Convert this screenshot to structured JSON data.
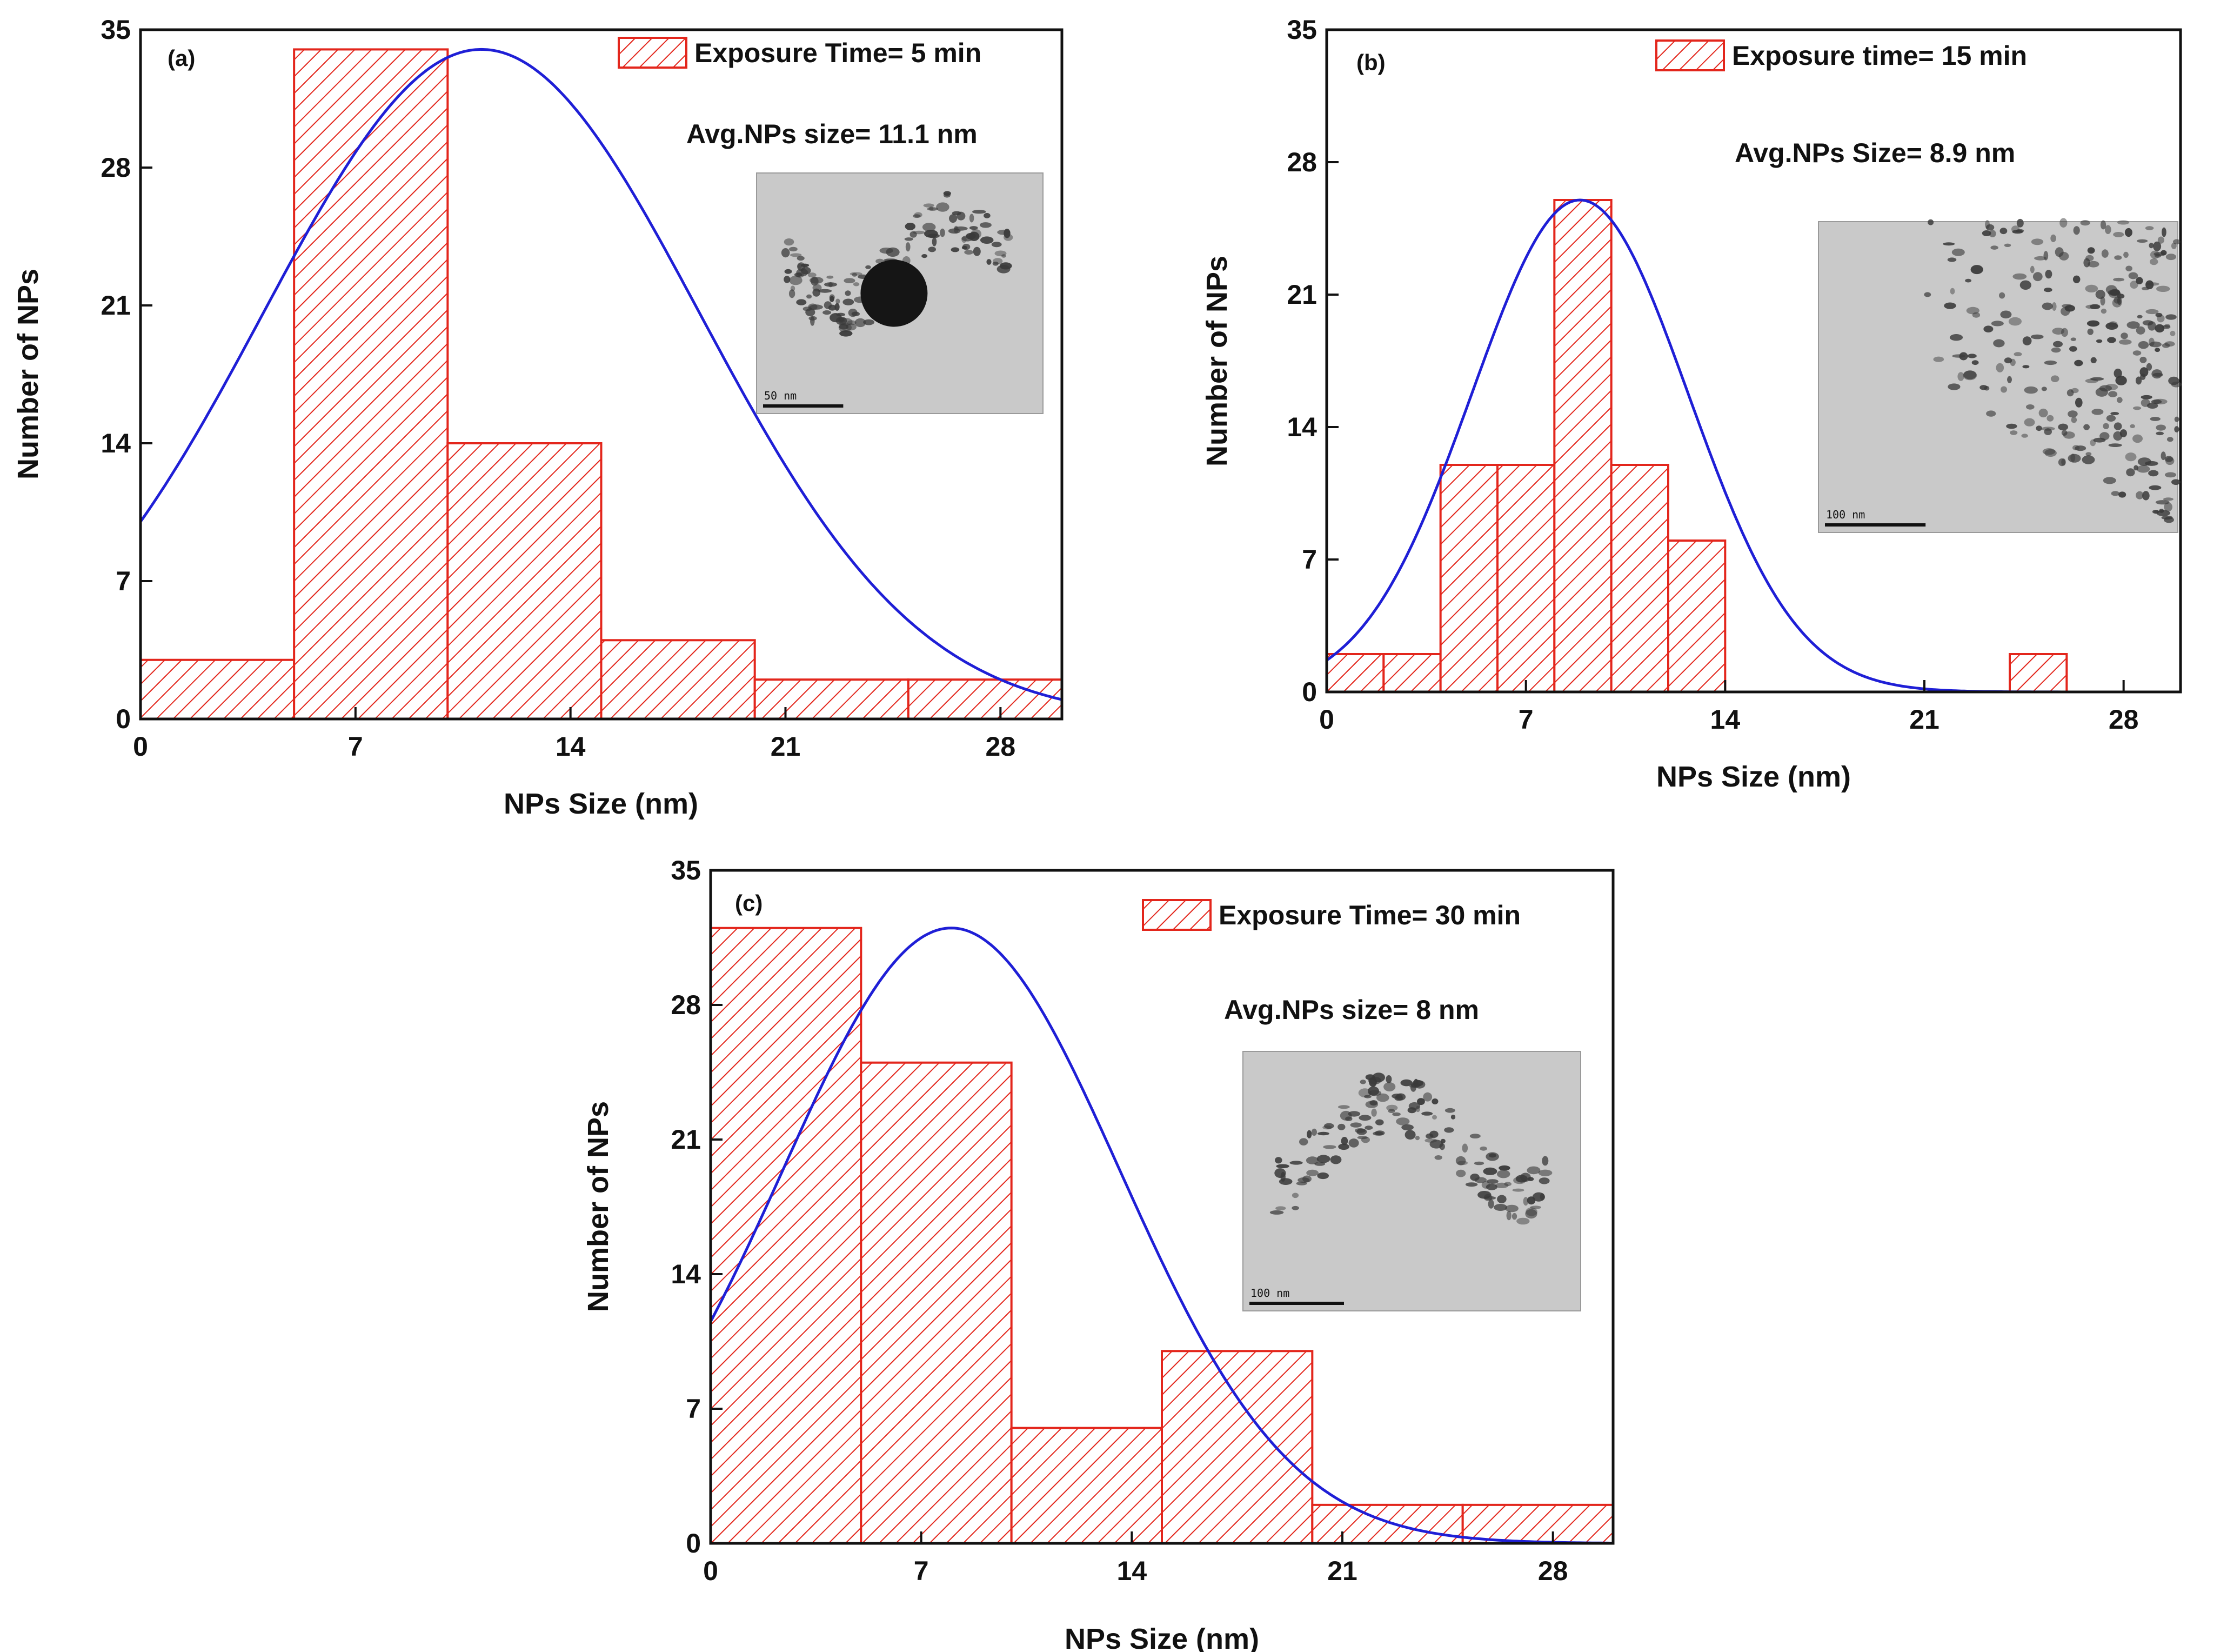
{
  "chart_data": [
    {
      "type": "bar",
      "panel": "(a)",
      "xlabel": "NPs Size (nm)",
      "ylabel": "Number of NPs",
      "xlim": [
        0,
        30
      ],
      "ylim": [
        0,
        35
      ],
      "xticks": [
        0,
        7,
        14,
        21,
        28
      ],
      "yticks": [
        0,
        7,
        14,
        21,
        28,
        35
      ],
      "bins": [
        {
          "start": 0,
          "end": 5,
          "count": 3
        },
        {
          "start": 5,
          "end": 10,
          "count": 34
        },
        {
          "start": 10,
          "end": 15,
          "count": 14
        },
        {
          "start": 15,
          "end": 20,
          "count": 4
        },
        {
          "start": 20,
          "end": 25,
          "count": 2
        },
        {
          "start": 25,
          "end": 30,
          "count": 2
        }
      ],
      "fit": {
        "type": "gaussian",
        "center": 11.1,
        "amplitude": 34,
        "sigma": 7.1
      },
      "legend": "Exposure Time= 5 min",
      "annotation": "Avg.NPs size= 11.1 nm",
      "inset_scale": "50 nm"
    },
    {
      "type": "bar",
      "panel": "(b)",
      "xlabel": "NPs Size (nm)",
      "ylabel": "Number of NPs",
      "xlim": [
        0,
        30
      ],
      "ylim": [
        0,
        35
      ],
      "xticks": [
        0,
        7,
        14,
        21,
        28
      ],
      "yticks": [
        0,
        7,
        14,
        21,
        28,
        35
      ],
      "bins": [
        {
          "start": 0,
          "end": 2,
          "count": 2
        },
        {
          "start": 2,
          "end": 4,
          "count": 2
        },
        {
          "start": 4,
          "end": 6,
          "count": 12
        },
        {
          "start": 6,
          "end": 8,
          "count": 12
        },
        {
          "start": 8,
          "end": 10,
          "count": 26
        },
        {
          "start": 10,
          "end": 12,
          "count": 12
        },
        {
          "start": 12,
          "end": 14,
          "count": 8
        },
        {
          "start": 24,
          "end": 26,
          "count": 2
        }
      ],
      "fit": {
        "type": "gaussian",
        "center": 8.9,
        "amplitude": 26,
        "sigma": 3.8
      },
      "legend": "Exposure time= 15 min",
      "annotation": "Avg.NPs Size= 8.9 nm",
      "inset_scale": "100 nm"
    },
    {
      "type": "bar",
      "panel": "(c)",
      "xlabel": "NPs Size (nm)",
      "ylabel": "Number of NPs",
      "xlim": [
        0,
        30
      ],
      "ylim": [
        0,
        35
      ],
      "xticks": [
        0,
        7,
        14,
        21,
        28
      ],
      "yticks": [
        0,
        7,
        14,
        21,
        28,
        35
      ],
      "bins": [
        {
          "start": 0,
          "end": 5,
          "count": 32
        },
        {
          "start": 5,
          "end": 10,
          "count": 25
        },
        {
          "start": 10,
          "end": 15,
          "count": 6
        },
        {
          "start": 15,
          "end": 20,
          "count": 10
        },
        {
          "start": 20,
          "end": 25,
          "count": 2
        },
        {
          "start": 25,
          "end": 30,
          "count": 2
        }
      ],
      "fit": {
        "type": "gaussian",
        "center": 8,
        "amplitude": 32,
        "sigma": 5.6
      },
      "legend": "Exposure Time= 30 min",
      "annotation": "Avg.NPs size= 8 nm",
      "inset_scale": "100 nm"
    }
  ],
  "colors": {
    "bar_stroke": "#e3261c",
    "hatch": "#e3261c",
    "fit_line": "#1f1fd6",
    "axis": "#111111"
  }
}
